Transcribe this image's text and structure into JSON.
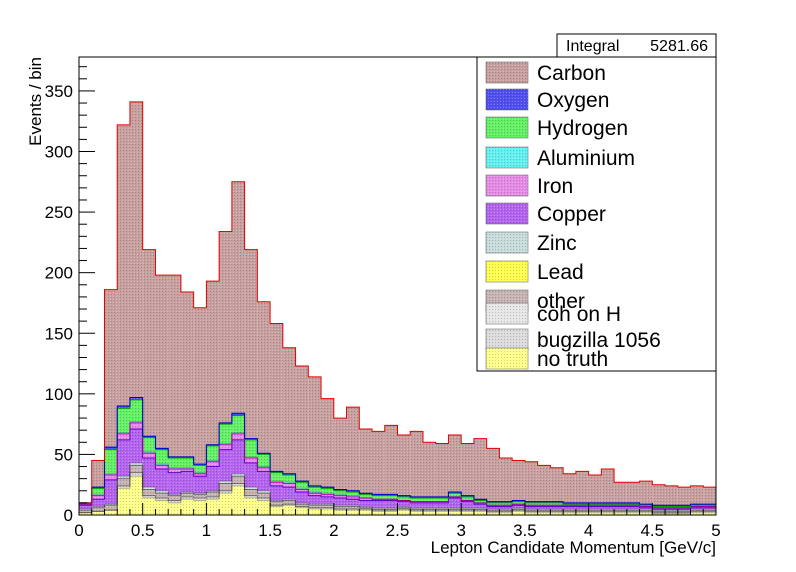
{
  "chart_data": {
    "type": "bar",
    "stacked": true,
    "xlabel": "Lepton Candidate Momentum [GeV/c]",
    "ylabel": "Events / bin",
    "xlim": [
      0,
      5
    ],
    "ylim": [
      0,
      378
    ],
    "bin_width": 0.1,
    "x_ticks": [
      "0",
      "0.5",
      "1",
      "1.5",
      "2",
      "2.5",
      "3",
      "3.5",
      "4",
      "4.5",
      "5"
    ],
    "y_ticks": [
      "0",
      "50",
      "100",
      "150",
      "200",
      "250",
      "300",
      "350"
    ],
    "x_tick_values": [
      0,
      0.5,
      1,
      1.5,
      2,
      2.5,
      3,
      3.5,
      4,
      4.5,
      5
    ],
    "y_tick_values": [
      0,
      50,
      100,
      150,
      200,
      250,
      300,
      350
    ],
    "stats_box": {
      "label": "Integral",
      "value": "5281.66"
    },
    "legend_position": "top-right",
    "grid": false,
    "series": [
      {
        "name": "no truth",
        "color": "#ffff8c",
        "hatch": true,
        "values": [
          2,
          3,
          4,
          22,
          32,
          14,
          12,
          10,
          13,
          12,
          13,
          18,
          24,
          14,
          12,
          7,
          8,
          6,
          5,
          5,
          4,
          4,
          4,
          3,
          3,
          4,
          3,
          3,
          3,
          3,
          3,
          3,
          2,
          2,
          3,
          2,
          2,
          2,
          2,
          2,
          2,
          2,
          2,
          2,
          2,
          1,
          1,
          1,
          2,
          2
        ]
      },
      {
        "name": "bugzilla 1056",
        "color": "#dcdcdc",
        "hatch": true,
        "values": [
          0,
          0,
          0,
          2,
          3,
          2,
          2,
          2,
          2,
          2,
          2,
          2,
          2,
          2,
          2,
          1,
          1,
          1,
          1,
          1,
          1,
          1,
          1,
          1,
          1,
          1,
          1,
          1,
          1,
          1,
          1,
          1,
          1,
          1,
          1,
          1,
          1,
          1,
          1,
          1,
          1,
          1,
          1,
          1,
          1,
          1,
          1,
          1,
          1,
          1
        ]
      },
      {
        "name": "coh on H",
        "color": "#e6e6e6",
        "hatch": true,
        "values": [
          0,
          0,
          0,
          0,
          0,
          0,
          0,
          0,
          0,
          0,
          0,
          0,
          0,
          0,
          0,
          0,
          0,
          0,
          0,
          0,
          0,
          0,
          0,
          0,
          0,
          0,
          0,
          0,
          0,
          0,
          0,
          0,
          0,
          0,
          0,
          0,
          0,
          0,
          0,
          0,
          0,
          0,
          0,
          0,
          0,
          0,
          0,
          0,
          0,
          0
        ]
      },
      {
        "name": "other",
        "color": "#c8b4b4",
        "hatch": true,
        "values": [
          2,
          3,
          4,
          6,
          6,
          5,
          4,
          4,
          3,
          3,
          4,
          6,
          6,
          5,
          4,
          3,
          3,
          2,
          2,
          2,
          2,
          2,
          1,
          1,
          1,
          1,
          1,
          1,
          1,
          1,
          1,
          1,
          1,
          1,
          1,
          1,
          1,
          1,
          1,
          1,
          1,
          1,
          1,
          1,
          1,
          1,
          1,
          1,
          1,
          1
        ]
      },
      {
        "name": "Lead",
        "color": "#ffff50",
        "hatch": true,
        "values": [
          0,
          0,
          0,
          0,
          0,
          0,
          0,
          0,
          0,
          0,
          0,
          0,
          0,
          0,
          0,
          0,
          0,
          0,
          0,
          0,
          0,
          0,
          0,
          0,
          0,
          0,
          0,
          0,
          0,
          0,
          0,
          0,
          0,
          0,
          0,
          0,
          0,
          0,
          0,
          0,
          0,
          0,
          0,
          0,
          0,
          0,
          0,
          0,
          0,
          0
        ]
      },
      {
        "name": "Zinc",
        "color": "#c8dcdc",
        "hatch": true,
        "values": [
          1,
          1,
          1,
          2,
          2,
          2,
          2,
          1,
          1,
          1,
          1,
          2,
          2,
          2,
          2,
          1,
          1,
          1,
          1,
          1,
          1,
          1,
          1,
          1,
          1,
          1,
          1,
          1,
          1,
          1,
          1,
          1,
          1,
          1,
          1,
          1,
          1,
          1,
          1,
          1,
          1,
          1,
          1,
          1,
          1,
          1,
          1,
          1,
          1,
          1
        ]
      },
      {
        "name": "Copper",
        "color": "#b464f0",
        "hatch": true,
        "values": [
          3,
          6,
          20,
          30,
          28,
          24,
          18,
          18,
          17,
          14,
          20,
          26,
          28,
          20,
          16,
          12,
          10,
          9,
          7,
          6,
          6,
          5,
          5,
          6,
          6,
          4,
          4,
          4,
          4,
          8,
          5,
          3,
          2,
          2,
          2,
          2,
          2,
          2,
          2,
          2,
          2,
          2,
          2,
          2,
          1,
          1,
          1,
          1,
          1,
          1
        ]
      },
      {
        "name": "Iron",
        "color": "#e68ce6",
        "hatch": true,
        "values": [
          1,
          3,
          4,
          5,
          5,
          4,
          3,
          3,
          2,
          2,
          4,
          4,
          5,
          4,
          3,
          3,
          3,
          2,
          2,
          2,
          2,
          2,
          2,
          1,
          1,
          1,
          1,
          1,
          1,
          1,
          1,
          1,
          1,
          1,
          1,
          1,
          1,
          1,
          1,
          1,
          1,
          1,
          1,
          1,
          1,
          1,
          1,
          1,
          1,
          1
        ]
      },
      {
        "name": "Aluminium",
        "color": "#64f0f0",
        "hatch": true,
        "values": [
          0,
          1,
          1,
          1,
          1,
          1,
          1,
          1,
          1,
          1,
          1,
          1,
          1,
          1,
          1,
          1,
          1,
          1,
          1,
          1,
          1,
          1,
          0,
          0,
          0,
          0,
          0,
          0,
          0,
          0,
          0,
          0,
          0,
          0,
          0,
          0,
          0,
          0,
          0,
          0,
          0,
          0,
          0,
          0,
          0,
          0,
          0,
          0,
          0,
          0
        ]
      },
      {
        "name": "Hydrogen",
        "color": "#64f064",
        "hatch": true,
        "values": [
          1,
          5,
          20,
          20,
          18,
          12,
          12,
          8,
          8,
          6,
          12,
          16,
          14,
          14,
          10,
          7,
          6,
          5,
          4,
          4,
          3,
          3,
          3,
          3,
          3,
          3,
          3,
          3,
          3,
          3,
          3,
          2,
          2,
          2,
          2,
          2,
          2,
          2,
          1,
          1,
          1,
          1,
          1,
          1,
          1,
          1,
          1,
          1,
          1,
          1
        ]
      },
      {
        "name": "Oxygen",
        "color": "#5050f0",
        "hatch": true,
        "values": [
          0,
          1,
          2,
          2,
          2,
          1,
          1,
          1,
          1,
          1,
          1,
          1,
          2,
          1,
          1,
          1,
          1,
          1,
          1,
          1,
          1,
          1,
          1,
          1,
          1,
          1,
          1,
          1,
          1,
          1,
          1,
          1,
          1,
          1,
          1,
          1,
          1,
          1,
          1,
          1,
          1,
          1,
          1,
          1,
          1,
          1,
          1,
          1,
          1,
          1
        ]
      },
      {
        "name": "Carbon",
        "color": "#c8a0a0",
        "hatch": true,
        "values": [
          0,
          22,
          130,
          232,
          244,
          154,
          143,
          150,
          136,
          129,
          135,
          158,
          191,
          156,
          125,
          122,
          104,
          95,
          90,
          73,
          59,
          69,
          53,
          52,
          57,
          50,
          54,
          45,
          44,
          47,
          43,
          50,
          44,
          36,
          33,
          33,
          30,
          28,
          24,
          26,
          23,
          28,
          17,
          17,
          19,
          17,
          16,
          15,
          15,
          14
        ]
      }
    ]
  }
}
